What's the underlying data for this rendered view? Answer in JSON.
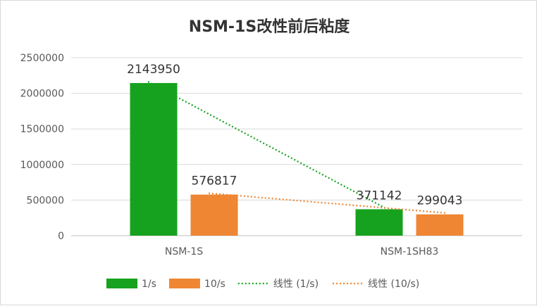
{
  "chart_data": {
    "type": "bar",
    "title": "NSM-1S改性前后粘度",
    "categories": [
      "NSM-1S",
      "NSM-1SH83"
    ],
    "series": [
      {
        "name": "1/s",
        "values": [
          2143950,
          371142
        ],
        "color": "#16a21e",
        "value_labels": [
          "2143950",
          "371142"
        ]
      },
      {
        "name": "10/s",
        "values": [
          576817,
          299043
        ],
        "color": "#ee8633",
        "value_labels": [
          "576817",
          "299043"
        ]
      }
    ],
    "trendlines": [
      {
        "name": "线性 (1/s)",
        "series_index": 0,
        "color": "#16a21e"
      },
      {
        "name": "线性 (10/s)",
        "series_index": 1,
        "color": "#ee8633"
      }
    ],
    "ylim": [
      0,
      2500000
    ],
    "yticks": [
      "0",
      "500000",
      "1000000",
      "1500000",
      "2000000",
      "2500000"
    ],
    "ytick_values": [
      0,
      500000,
      1000000,
      1500000,
      2000000,
      2500000
    ],
    "grid": true,
    "legend_position": "bottom"
  }
}
